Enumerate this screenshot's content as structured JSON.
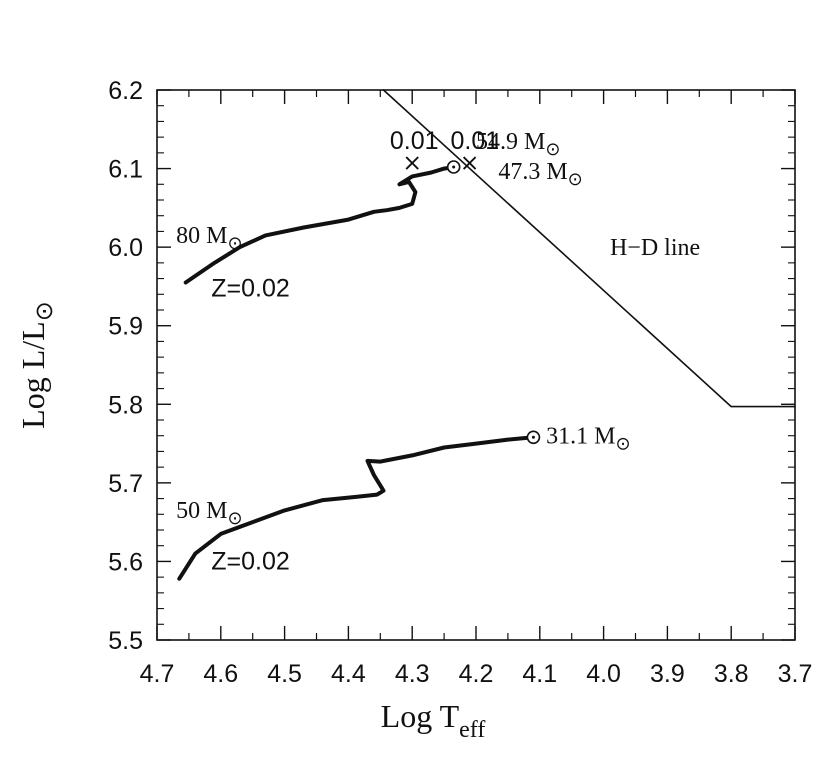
{
  "chart_data": {
    "type": "line",
    "title": "",
    "xlabel": {
      "main": "Log T",
      "sub": "eff"
    },
    "ylabel": "Log L/L",
    "ylabel_symbol": "⊙",
    "xlim": [
      4.7,
      3.7
    ],
    "ylim": [
      5.5,
      6.2
    ],
    "x_axis_reversed": true,
    "grid": false,
    "xticks": [
      {
        "value": 4.7,
        "label": "4.7"
      },
      {
        "value": 4.6,
        "label": "4.6"
      },
      {
        "value": 4.5,
        "label": "4.5"
      },
      {
        "value": 4.4,
        "label": "4.4"
      },
      {
        "value": 4.3,
        "label": "4.3"
      },
      {
        "value": 4.2,
        "label": "4.2"
      },
      {
        "value": 4.1,
        "label": "4.1"
      },
      {
        "value": 4.0,
        "label": "4.0"
      },
      {
        "value": 3.9,
        "label": "3.9"
      },
      {
        "value": 3.8,
        "label": "3.8"
      },
      {
        "value": 3.7,
        "label": "3.7"
      }
    ],
    "yticks": [
      {
        "value": 5.5,
        "label": "5.5"
      },
      {
        "value": 5.6,
        "label": "5.6"
      },
      {
        "value": 5.7,
        "label": "5.7"
      },
      {
        "value": 5.8,
        "label": "5.8"
      },
      {
        "value": 5.9,
        "label": "5.9"
      },
      {
        "value": 6.0,
        "label": "6.0"
      },
      {
        "value": 6.1,
        "label": "6.1"
      },
      {
        "value": 6.2,
        "label": "6.2"
      }
    ],
    "series": [
      {
        "key": "track_80",
        "x": [
          4.655,
          4.61,
          4.57,
          4.53,
          4.47,
          4.4,
          4.36,
          4.34,
          4.32,
          4.3,
          4.295,
          4.305,
          4.32,
          4.3,
          4.27,
          4.25,
          4.235
        ],
        "y": [
          5.955,
          5.98,
          6.0,
          6.015,
          6.025,
          6.035,
          6.045,
          6.047,
          6.05,
          6.055,
          6.07,
          6.083,
          6.08,
          6.09,
          6.095,
          6.1,
          6.102
        ],
        "end": {
          "x": 4.235,
          "y": 6.102
        }
      },
      {
        "key": "track_50",
        "x": [
          4.665,
          4.64,
          4.6,
          4.55,
          4.5,
          4.44,
          4.39,
          4.355,
          4.345,
          4.36,
          4.37,
          4.35,
          4.3,
          4.25,
          4.2,
          4.15,
          4.11
        ],
        "y": [
          5.578,
          5.61,
          5.635,
          5.65,
          5.665,
          5.678,
          5.682,
          5.685,
          5.69,
          5.71,
          5.728,
          5.727,
          5.735,
          5.745,
          5.75,
          5.755,
          5.758
        ],
        "end": {
          "x": 4.11,
          "y": 5.758
        }
      },
      {
        "key": "hd_line",
        "x": [
          4.345,
          3.8,
          3.7
        ],
        "y": [
          6.2,
          5.797,
          5.797
        ]
      }
    ],
    "markers": [
      {
        "x": 4.3,
        "y": 6.107,
        "symbol": "×"
      },
      {
        "x": 4.21,
        "y": 6.107,
        "symbol": "×"
      }
    ],
    "annotations": {
      "label_80": {
        "text": "80 M",
        "x": 4.67,
        "y": 6.005
      },
      "z_80": {
        "text": "Z=0.02",
        "x": 4.615,
        "y": 5.937
      },
      "label_50": {
        "text": "50 M",
        "x": 4.67,
        "y": 5.655
      },
      "z_50": {
        "text": "Z=0.02",
        "x": 4.615,
        "y": 5.59
      },
      "zval_1": {
        "text": "0.01",
        "x": 4.335,
        "y": 6.125
      },
      "zval_2": {
        "text": "0.01",
        "x": 4.24,
        "y": 6.125
      },
      "mass_54": {
        "text": "54.9 M",
        "x": 4.2,
        "y": 6.125
      },
      "mass_47": {
        "text": "47.3 M",
        "x": 4.165,
        "y": 6.087
      },
      "mass_31": {
        "text": "31.1 M",
        "x": 4.09,
        "y": 5.75
      },
      "hd_label": {
        "text": "H−D line",
        "x": 3.99,
        "y": 5.99
      }
    },
    "sun_symbol": "⊙"
  }
}
